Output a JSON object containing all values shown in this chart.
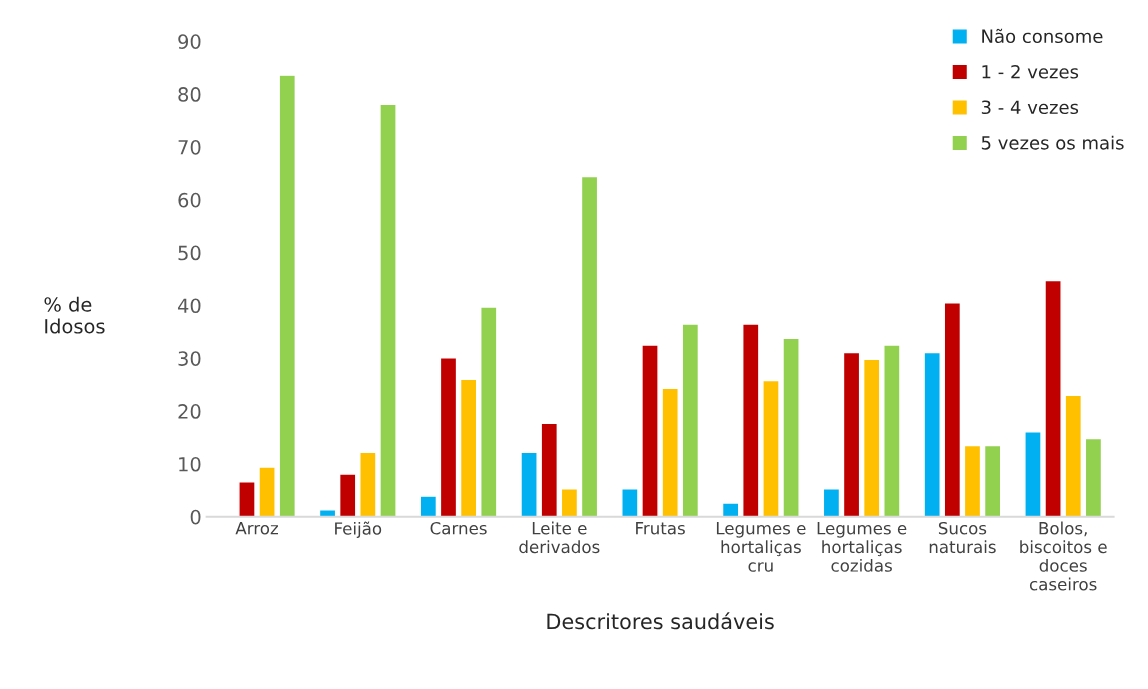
{
  "chart_data": {
    "type": "bar",
    "xlabel": "Descritores saudáveis",
    "ylabel": "% de\nIdosos",
    "categories": [
      "Arroz",
      "Feijão",
      "Carnes",
      "Leite e\nderivados",
      "Frutas",
      "Legumes e\nhortaliças\ncru",
      "Legumes e\nhortaliças\ncozidas",
      "Sucos\nnaturais",
      "Bolos,\nbiscoitos e\ndoces\ncaseiros"
    ],
    "series": [
      {
        "name": "Não consome",
        "color": "#00b0f0",
        "values": [
          null,
          1.3,
          3.9,
          12.2,
          5.3,
          2.6,
          5.3,
          31.1,
          16.1
        ]
      },
      {
        "name": "1 - 2 vezes",
        "color": "#c00000",
        "values": [
          6.6,
          8.1,
          30.1,
          17.7,
          32.5,
          36.5,
          31.1,
          40.5,
          44.7
        ]
      },
      {
        "name": "3 - 4 vezes",
        "color": "#ffc000",
        "values": [
          9.4,
          12.2,
          26.0,
          5.3,
          24.3,
          25.8,
          29.8,
          13.5,
          23.0
        ]
      },
      {
        "name": "5 vezes os mais",
        "color": "#92d050",
        "values": [
          83.6,
          78.1,
          39.7,
          64.4,
          36.5,
          33.8,
          32.5,
          13.5,
          14.8
        ]
      }
    ],
    "ylim": [
      0,
      90
    ],
    "yticks": [
      0,
      10,
      20,
      30,
      40,
      50,
      60,
      70,
      80,
      90
    ],
    "grid": false,
    "legend": "top right"
  }
}
